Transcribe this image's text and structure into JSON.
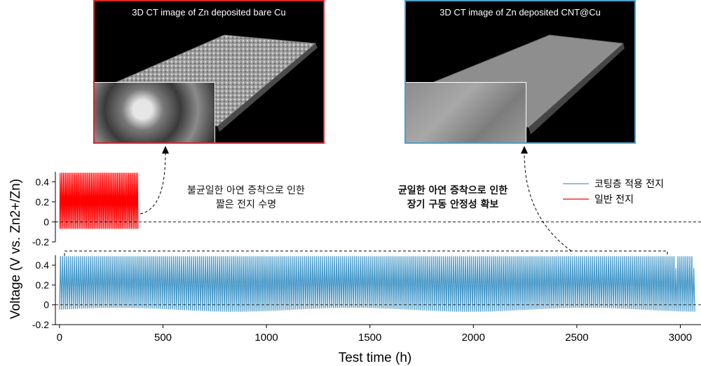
{
  "panels": [
    {
      "title": "3D CT image of Zn deposited bare Cu",
      "border_color": "#d8262c"
    },
    {
      "title": "3D CT image of Zn deposited CNT@Cu",
      "border_color": "#4c9fc8"
    }
  ],
  "annotations": {
    "short_life": [
      "불균일한 아연 증착으로 인한",
      "짧은 전지 수명"
    ],
    "long_stability": [
      "균일한 아연 증착으로 인한",
      "장기 구동 안정성 확보"
    ]
  },
  "chart_data": {
    "type": "line",
    "xlabel": "Test time (h)",
    "ylabel": "Voltage (V vs. Zn2+/Zn)",
    "xlim": [
      -20,
      3100
    ],
    "xticks": [
      0,
      500,
      1000,
      1500,
      2000,
      2500,
      3000
    ],
    "legend": {
      "placement": "top-right",
      "entries": [
        "코팅층 적용 전지",
        "일반 전지"
      ]
    },
    "subplots": [
      {
        "ylim": [
          -0.2,
          0.5
        ],
        "yticks": [
          -0.2,
          0,
          0.2,
          0.4
        ],
        "ytick_labels": [
          "-0.2",
          "0",
          "0.2",
          "0.4"
        ],
        "series": [
          {
            "name": "일반 전지",
            "color": "#ff0000",
            "x_range": [
              0,
              380
            ],
            "y_cycle": [
              -0.07,
              0.49
            ]
          }
        ]
      },
      {
        "ylim": [
          -0.2,
          0.5
        ],
        "yticks": [
          -0.2,
          0,
          0.2,
          0.4
        ],
        "ytick_labels": [
          "-0.2",
          "0",
          "0.2",
          "0.4"
        ],
        "series": [
          {
            "name": "코팅층 적용 전지",
            "color": "#4a9ac9",
            "x_range": [
              0,
              3070
            ],
            "y_cycle": [
              -0.05,
              0.49
            ]
          }
        ]
      }
    ]
  }
}
